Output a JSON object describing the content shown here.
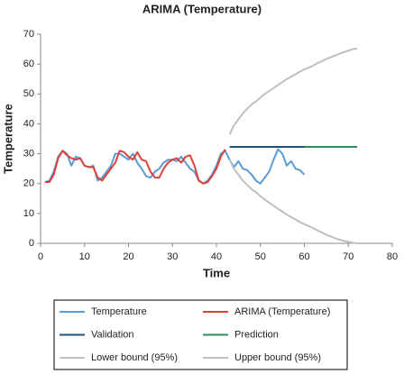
{
  "chart_data": {
    "type": "line",
    "title": "ARIMA (Temperature)",
    "x_label": "Time",
    "y_label": "Temperature",
    "xlim": [
      0,
      80
    ],
    "xticks": [
      0,
      10,
      20,
      30,
      40,
      50,
      60,
      70,
      80
    ],
    "ylim": [
      0,
      70
    ],
    "yticks": [
      0,
      10,
      20,
      30,
      40,
      50,
      60,
      70
    ],
    "grid": false,
    "legend": "bottom",
    "series": [
      {
        "name": "Temperature",
        "color": "#5b9bd5",
        "x": [
          1,
          2,
          3,
          4,
          5,
          6,
          7,
          8,
          9,
          10,
          11,
          12,
          13,
          14,
          15,
          16,
          17,
          18,
          19,
          20,
          21,
          22,
          23,
          24,
          25,
          26,
          27,
          28,
          29,
          30,
          31,
          32,
          33,
          34,
          35,
          36,
          37,
          38,
          39,
          40,
          41,
          42,
          43,
          44,
          45,
          46,
          47,
          48,
          49,
          50,
          51,
          52,
          53,
          54,
          55,
          56,
          57,
          58,
          59,
          60
        ],
        "values": [
          20.5,
          21,
          24,
          29,
          31,
          30,
          26,
          29,
          28.5,
          26,
          25.5,
          26,
          21,
          22,
          24,
          26,
          30,
          30,
          29,
          28,
          30,
          27,
          25,
          22.5,
          22,
          24,
          25,
          27,
          28,
          28,
          27.5,
          29,
          27,
          25,
          24,
          21,
          20,
          21,
          23,
          26,
          30,
          31,
          28,
          25.5,
          27.5,
          25,
          24.5,
          23,
          21,
          20,
          22,
          24,
          28,
          31.5,
          30,
          26,
          27.5,
          25,
          24.5,
          23
        ]
      },
      {
        "name": "ARIMA (Temperature)",
        "color": "#e0403a",
        "x": [
          1,
          2,
          3,
          4,
          5,
          6,
          7,
          8,
          9,
          10,
          11,
          12,
          13,
          14,
          15,
          16,
          17,
          18,
          19,
          20,
          21,
          22,
          23,
          24,
          25,
          26,
          27,
          28,
          29,
          30,
          31,
          32,
          33,
          34,
          35,
          36,
          37,
          38,
          39,
          40,
          41,
          42
        ],
        "values": [
          20.5,
          20.5,
          23,
          28.5,
          31,
          29.5,
          28.5,
          28,
          28.5,
          26,
          25.5,
          25.5,
          22,
          21,
          23,
          25,
          27,
          31,
          30.5,
          29,
          28,
          30.5,
          28,
          27.5,
          24,
          22,
          22,
          25,
          27,
          28,
          28.5,
          27,
          29,
          29.5,
          26,
          21,
          20,
          20.5,
          22.5,
          25,
          29,
          31.5
        ]
      },
      {
        "name": "Validation",
        "color": "#1f4e79",
        "x": [
          43,
          60
        ],
        "values": [
          32.3,
          32.3
        ]
      },
      {
        "name": "Prediction",
        "color": "#2e8b57",
        "x": [
          60,
          72
        ],
        "values": [
          32.3,
          32.3
        ]
      },
      {
        "name": "Lower bound (95%)",
        "color": "#bfbfbf",
        "x": [
          43,
          44,
          45,
          46,
          47,
          48,
          49,
          50,
          51,
          52,
          53,
          54,
          55,
          56,
          57,
          58,
          59,
          60,
          61,
          62,
          63,
          64,
          65,
          66,
          67,
          68,
          69,
          70,
          71,
          72
        ],
        "values": [
          28,
          25,
          23,
          21,
          19.6,
          18.1,
          17.1,
          15.8,
          14.6,
          13.6,
          12.6,
          11.6,
          10.6,
          9.6,
          8.8,
          8,
          7.1,
          6.4,
          5.8,
          5.1,
          4.3,
          3.6,
          2.9,
          2.3,
          1.7,
          1.2,
          0.8,
          0.5,
          0.2,
          0
        ]
      },
      {
        "name": "Upper bound (95%)",
        "color": "#bfbfbf",
        "x": [
          43,
          44,
          45,
          46,
          47,
          48,
          49,
          50,
          51,
          52,
          53,
          54,
          55,
          56,
          57,
          58,
          59,
          60,
          61,
          62,
          63,
          64,
          65,
          66,
          67,
          68,
          69,
          70,
          71,
          72
        ],
        "values": [
          36.5,
          39.5,
          41.5,
          43.5,
          45,
          46.5,
          47.5,
          48.8,
          50,
          51,
          52,
          53,
          54,
          55,
          55.8,
          56.6,
          57.5,
          58.2,
          58.8,
          59.5,
          60.3,
          61,
          61.7,
          62.3,
          62.9,
          63.5,
          64,
          64.5,
          65,
          65.2
        ]
      }
    ]
  }
}
